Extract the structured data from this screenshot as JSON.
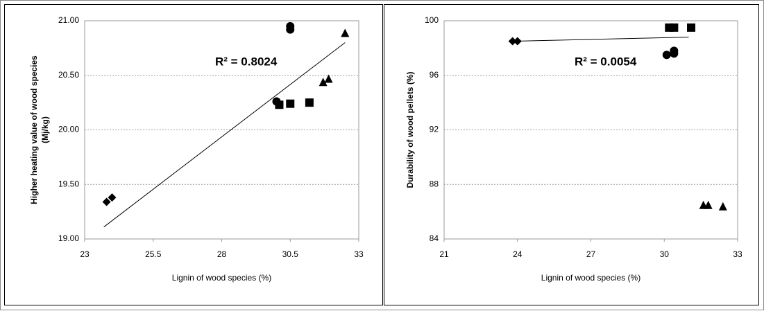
{
  "chart_data": [
    {
      "type": "scatter",
      "xlabel": "Lignin of wood species (%)",
      "ylabel": [
        "Higher heating value of wood species",
        "(Mj/kg)"
      ],
      "annotation": "R² = 0.8024",
      "xlim": [
        23,
        33
      ],
      "xticks": [
        23,
        25.5,
        28,
        30.5,
        33
      ],
      "ylim": [
        19,
        21
      ],
      "yticks": [
        {
          "value": 19,
          "label": "19.00"
        },
        {
          "value": 19.5,
          "label": "19.50"
        },
        {
          "value": 20,
          "label": "20.00"
        },
        {
          "value": 20.5,
          "label": "20.50"
        },
        {
          "value": 21,
          "label": "21.00"
        }
      ],
      "grid": true,
      "series": [
        {
          "marker": "diamond",
          "color": "#000000",
          "x": [
            23.8,
            24.0
          ],
          "values": [
            19.34,
            19.38
          ]
        },
        {
          "marker": "circle",
          "color": "#000000",
          "x": [
            30.0,
            30.5,
            30.5
          ],
          "values": [
            20.26,
            20.92,
            20.95
          ]
        },
        {
          "marker": "square",
          "color": "#000000",
          "x": [
            30.1,
            30.5,
            31.2
          ],
          "values": [
            20.23,
            20.24,
            20.25
          ]
        },
        {
          "marker": "triangle",
          "color": "#000000",
          "x": [
            31.7,
            31.9,
            32.5
          ],
          "values": [
            20.44,
            20.47,
            20.89
          ]
        }
      ],
      "trendline": {
        "x": [
          23.7,
          32.5
        ],
        "values": [
          19.11,
          20.8
        ]
      }
    },
    {
      "type": "scatter",
      "xlabel": "Lignin of wood species (%)",
      "ylabel": [
        "Durability of wood pellets (%)"
      ],
      "annotation": "R² = 0.0054",
      "xlim": [
        21,
        33
      ],
      "xticks": [
        21,
        24,
        27,
        30,
        33
      ],
      "ylim": [
        84,
        100
      ],
      "yticks": [
        84,
        88,
        92,
        96,
        100
      ],
      "grid": true,
      "series": [
        {
          "marker": "diamond",
          "color": "#000000",
          "x": [
            23.8,
            24.0
          ],
          "values": [
            98.5,
            98.5
          ]
        },
        {
          "marker": "circle",
          "color": "#000000",
          "x": [
            30.1,
            30.4,
            30.4
          ],
          "values": [
            97.5,
            97.6,
            97.8
          ]
        },
        {
          "marker": "square",
          "color": "#000000",
          "x": [
            30.2,
            30.4,
            31.1
          ],
          "values": [
            99.5,
            99.5,
            99.5
          ]
        },
        {
          "marker": "triangle",
          "color": "#000000",
          "x": [
            31.6,
            31.8,
            32.4
          ],
          "values": [
            86.5,
            86.5,
            86.4
          ]
        }
      ],
      "trendline": {
        "x": [
          23.8,
          31.0
        ],
        "values": [
          98.5,
          98.8
        ]
      }
    }
  ]
}
